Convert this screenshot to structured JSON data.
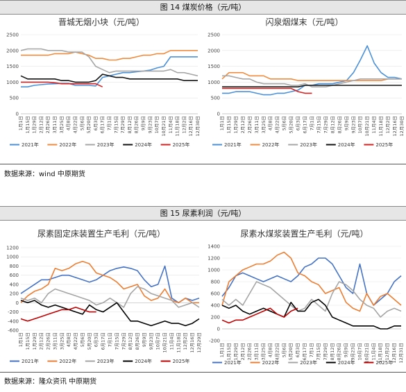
{
  "sections": [
    {
      "header": "图 14 煤炭价格（元/吨）",
      "source": "数据来源：wind 中原期货"
    },
    {
      "header": "图 15 尿素利润（元/吨）",
      "source": "数据来源：隆众资讯 中原期货"
    }
  ],
  "chart_data": [
    {
      "type": "line",
      "title": "晋城无烟小块（元/吨）",
      "ylim": [
        0,
        2500
      ],
      "yticks": [
        0,
        500,
        1000,
        1500,
        2000,
        2500
      ],
      "x_labels": [
        "1月1日",
        "1月15日",
        "1月29日",
        "2月12日",
        "2月26日",
        "3月11日",
        "3月25日",
        "4月8日",
        "4月22日",
        "5月6日",
        "5月20日",
        "6月3日",
        "6月17日",
        "7月1日",
        "7月15日",
        "7月29日",
        "8月12日",
        "8月26日",
        "9月9日",
        "9月23日",
        "10月7日",
        "10月21日",
        "11月4日",
        "11月18日",
        "12月2日",
        "12月16日",
        "12月30日"
      ],
      "legend_position": "bottom",
      "series": [
        {
          "name": "2021年",
          "color": "#4a90d9",
          "values": [
            850,
            850,
            900,
            920,
            940,
            950,
            960,
            960,
            900,
            900,
            900,
            880,
            1150,
            1200,
            1250,
            1300,
            1300,
            1330,
            1350,
            1380,
            1450,
            1500,
            1800,
            1800,
            1800,
            1800,
            1800
          ]
        },
        {
          "name": "2022年",
          "color": "#f08a3c",
          "values": [
            1850,
            1850,
            1850,
            1850,
            1850,
            1900,
            1900,
            1900,
            1950,
            1900,
            1850,
            1750,
            1750,
            1700,
            1700,
            1750,
            1750,
            1800,
            1850,
            1850,
            1900,
            1900,
            2000,
            2000,
            2000,
            2000,
            2000
          ]
        },
        {
          "name": "2023年",
          "color": "#a6a6a6",
          "values": [
            2000,
            2050,
            2050,
            2050,
            2000,
            2000,
            2000,
            1950,
            1950,
            1950,
            1800,
            1500,
            1400,
            1300,
            1350,
            1350,
            1350,
            1350,
            1350,
            1350,
            1350,
            1350,
            1400,
            1300,
            1300,
            1250,
            1200
          ]
        },
        {
          "name": "2024年",
          "color": "#111111",
          "values": [
            1200,
            1100,
            1100,
            1100,
            1100,
            1100,
            1050,
            1050,
            1000,
            1000,
            1000,
            1050,
            1250,
            1200,
            1150,
            1150,
            1100,
            1100,
            1100,
            1100,
            1100,
            1100,
            1100,
            1100,
            1050,
            1050,
            1050
          ]
        },
        {
          "name": "2025年",
          "color": "#d42020",
          "values": [
            1000,
            1000,
            1000,
            1000,
            1000,
            980,
            950,
            950,
            950,
            950,
            950,
            950,
            850,
            null,
            null,
            null,
            null,
            null,
            null,
            null,
            null,
            null,
            null,
            null,
            null,
            null,
            null
          ]
        }
      ]
    },
    {
      "type": "line",
      "title": "闪泉烟煤末（元/吨）",
      "ylim": [
        0,
        2500
      ],
      "yticks": [
        0,
        500,
        1000,
        1500,
        2000,
        2500
      ],
      "x_labels": [
        "1月1日",
        "1月15日",
        "1月29日",
        "2月12日",
        "2月26日",
        "3月11日",
        "3月25日",
        "4月8日",
        "4月22日",
        "5月6日",
        "5月20日",
        "6月3日",
        "6月17日",
        "7月1日",
        "7月15日",
        "7月29日",
        "8月12日",
        "8月26日",
        "9月9日",
        "9月23日",
        "10月7日",
        "10月21日",
        "11月4日",
        "11月18日",
        "12月2日",
        "12月16日",
        "12月30日"
      ],
      "legend_position": "bottom",
      "series": [
        {
          "name": "2021年",
          "color": "#4a90d9",
          "values": [
            650,
            650,
            700,
            700,
            700,
            650,
            600,
            600,
            650,
            650,
            700,
            750,
            900,
            900,
            950,
            950,
            950,
            1000,
            1050,
            1300,
            1700,
            2150,
            1600,
            1300,
            1150,
            1150,
            1100
          ]
        },
        {
          "name": "2022年",
          "color": "#f08a3c",
          "values": [
            1100,
            1300,
            1300,
            1300,
            1200,
            1200,
            1200,
            1100,
            1100,
            1100,
            1100,
            1050,
            1050,
            1050,
            1050,
            1050,
            1050,
            1050,
            1050,
            1050,
            1050,
            1050,
            1050,
            1050,
            1100,
            1100,
            1100
          ]
        },
        {
          "name": "2023年",
          "color": "#a6a6a6",
          "values": [
            1200,
            1200,
            1150,
            1100,
            1100,
            1000,
            950,
            950,
            950,
            950,
            900,
            900,
            950,
            850,
            850,
            850,
            900,
            950,
            1000,
            1050,
            1100,
            1100,
            1100,
            1100,
            1100,
            1100,
            1100
          ]
        },
        {
          "name": "2024年",
          "color": "#111111",
          "values": [
            850,
            850,
            850,
            850,
            850,
            850,
            850,
            850,
            850,
            850,
            850,
            850,
            900,
            900,
            900,
            900,
            900,
            900,
            900,
            900,
            900,
            900,
            900,
            900,
            900,
            900,
            900
          ]
        },
        {
          "name": "2025年",
          "color": "#d42020",
          "values": [
            800,
            800,
            800,
            800,
            800,
            800,
            800,
            800,
            800,
            800,
            800,
            700,
            650,
            650,
            null,
            null,
            null,
            null,
            null,
            null,
            null,
            null,
            null,
            null,
            null,
            null,
            null
          ]
        }
      ]
    },
    {
      "type": "line",
      "title": "尿素固定床装置生产毛利（元/吨）",
      "ylim": [
        -600,
        1200
      ],
      "yticks": [
        -600,
        -400,
        -200,
        0,
        200,
        400,
        600,
        800,
        1000,
        1200
      ],
      "x_labels": [
        "1月1日",
        "1月15日",
        "1月29日",
        "2月12日",
        "2月26日",
        "3月11日",
        "3月25日",
        "4月8日",
        "4月22日",
        "5月6日",
        "5月20日",
        "6月3日",
        "6月17日",
        "7月1日",
        "7月15日",
        "7月29日",
        "8月12日",
        "8月26日",
        "9月9日",
        "9月23日",
        "10月7日",
        "10月21日",
        "11月4日",
        "11月18日",
        "12月2日",
        "12月16日",
        "12月29日"
      ],
      "legend_position": "bottom",
      "series": [
        {
          "name": "2021年",
          "color": "#4472c4",
          "values": [
            200,
            300,
            400,
            500,
            500,
            550,
            600,
            600,
            550,
            500,
            450,
            500,
            600,
            700,
            750,
            780,
            750,
            700,
            500,
            350,
            400,
            800,
            100,
            0,
            100,
            50,
            100
          ]
        },
        {
          "name": "2022年",
          "color": "#ed7d31",
          "values": [
            0,
            150,
            250,
            300,
            400,
            750,
            700,
            750,
            850,
            900,
            850,
            650,
            600,
            550,
            450,
            300,
            350,
            400,
            150,
            50,
            100,
            300,
            50,
            0,
            100,
            0,
            0
          ]
        },
        {
          "name": "2023年",
          "color": "#a5a5a5",
          "values": [
            100,
            50,
            100,
            0,
            200,
            300,
            250,
            200,
            150,
            100,
            50,
            -50,
            0,
            100,
            0,
            -100,
            200,
            350,
            300,
            200,
            150,
            100,
            50,
            -100,
            -50,
            0,
            -100
          ]
        },
        {
          "name": "2024年",
          "color": "#000000",
          "values": [
            50,
            0,
            50,
            -50,
            -100,
            -50,
            -100,
            -150,
            -200,
            -250,
            -50,
            -150,
            -200,
            -100,
            0,
            -200,
            -400,
            -400,
            -450,
            -500,
            -450,
            -400,
            -450,
            -450,
            -500,
            -450,
            -350
          ]
        },
        {
          "name": "2025年",
          "color": "#c00000",
          "values": [
            -350,
            -400,
            -350,
            -300,
            -250,
            -200,
            -150,
            -150,
            -100,
            -150,
            -200,
            -200,
            null,
            null,
            null,
            null,
            null,
            null,
            null,
            null,
            null,
            null,
            null,
            null,
            null,
            null,
            null
          ]
        }
      ]
    },
    {
      "type": "line",
      "title": "尿素水煤浆装置生产毛利（元/吨）",
      "ylim": [
        -200,
        1400
      ],
      "yticks": [
        -200,
        0,
        200,
        400,
        600,
        800,
        1000,
        1200,
        1400
      ],
      "x_labels": [
        "1月1日",
        "1月15日",
        "1月29日",
        "2月12日",
        "2月26日",
        "3月11日",
        "3月25日",
        "4月8日",
        "4月22日",
        "5月6日",
        "5月20日",
        "6月3日",
        "6月17日",
        "7月1日",
        "7月15日",
        "7月29日",
        "8月12日",
        "8月26日",
        "9月9日",
        "9月23日",
        "10月7日",
        "10月21日",
        "11月4日",
        "11月18日",
        "12月2日",
        "12月16日",
        "12月31日"
      ],
      "legend_position": "bottom",
      "series": [
        {
          "name": "2021年",
          "color": "#4472c4",
          "values": [
            550,
            700,
            900,
            950,
            900,
            850,
            800,
            850,
            900,
            850,
            800,
            900,
            1050,
            1100,
            1200,
            1200,
            1100,
            900,
            700,
            600,
            1100,
            600,
            400,
            500,
            600,
            800,
            900
          ]
        },
        {
          "name": "2022年",
          "color": "#ed7d31",
          "values": [
            400,
            800,
            900,
            1000,
            1050,
            1100,
            1100,
            1150,
            1250,
            1300,
            1200,
            950,
            900,
            800,
            750,
            600,
            650,
            700,
            450,
            350,
            300,
            600,
            400,
            550,
            600,
            500,
            400
          ]
        },
        {
          "name": "2023年",
          "color": "#a5a5a5",
          "values": [
            500,
            400,
            500,
            400,
            600,
            800,
            750,
            700,
            600,
            500,
            400,
            300,
            350,
            500,
            400,
            300,
            600,
            800,
            750,
            650,
            500,
            400,
            350,
            200,
            300,
            350,
            300
          ]
        },
        {
          "name": "2024年",
          "color": "#000000",
          "values": [
            400,
            350,
            400,
            300,
            250,
            300,
            350,
            300,
            250,
            200,
            450,
            300,
            300,
            450,
            500,
            400,
            200,
            150,
            100,
            50,
            50,
            50,
            50,
            0,
            0,
            50,
            50
          ]
        },
        {
          "name": "2025年",
          "color": "#c00000",
          "values": [
            150,
            100,
            150,
            150,
            200,
            250,
            300,
            350,
            250,
            200,
            300,
            350,
            null,
            null,
            null,
            null,
            null,
            null,
            null,
            null,
            null,
            null,
            null,
            null,
            null,
            null,
            null
          ]
        }
      ]
    }
  ]
}
